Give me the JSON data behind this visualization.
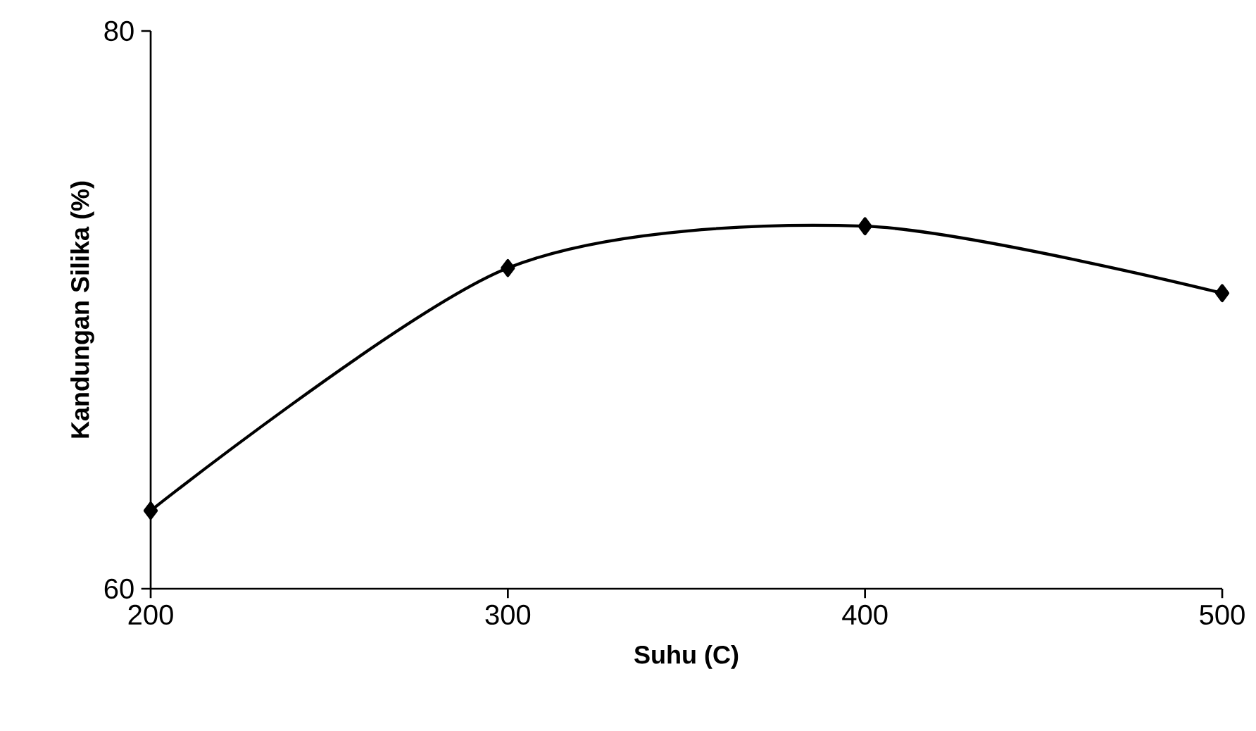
{
  "chart_data": {
    "type": "line",
    "xlabel": "Suhu (C)",
    "ylabel": "Kandungan Silika (%)",
    "x": [
      200,
      300,
      400,
      500
    ],
    "values": [
      62.8,
      71.5,
      73.0,
      70.6
    ],
    "color": "#000000",
    "marker": "diamond",
    "line_style": "solid",
    "xlim": [
      200,
      500
    ],
    "xticks": [
      200,
      300,
      400,
      500
    ],
    "ylim": [
      60,
      80
    ],
    "yticks": [
      60,
      80
    ]
  }
}
